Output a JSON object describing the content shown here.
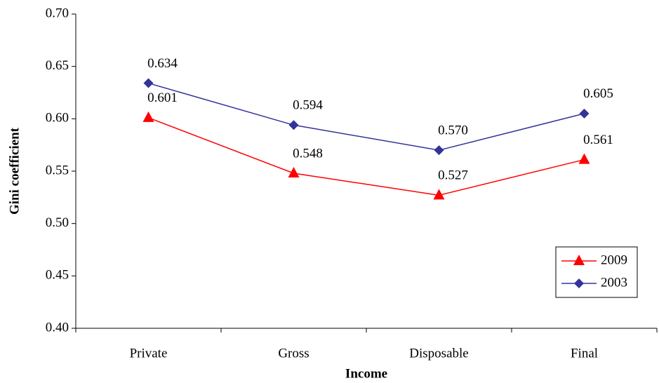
{
  "chart_data": {
    "type": "line",
    "x_label": "Income",
    "y_label": "Gini coefficient",
    "categories": [
      "Private",
      "Gross",
      "Disposable",
      "Final"
    ],
    "series": [
      {
        "name": "2009",
        "color": "#ff0000",
        "marker": "triangle",
        "values": [
          0.601,
          0.548,
          0.527,
          0.561
        ],
        "value_labels": [
          "0.601",
          "0.548",
          "0.527",
          "0.561"
        ]
      },
      {
        "name": "2003",
        "color": "#333399",
        "marker": "diamond",
        "values": [
          0.634,
          0.594,
          0.57,
          0.605
        ],
        "value_labels": [
          "0.634",
          "0.594",
          "0.570",
          "0.605"
        ]
      }
    ],
    "ylim": [
      0.4,
      0.7
    ],
    "yticks": [
      {
        "value": 0.4,
        "label": "0.40"
      },
      0.45,
      {
        "value": 0.5,
        "label": "0.50"
      },
      0.55,
      {
        "value": 0.6,
        "label": "0.60"
      },
      0.65,
      {
        "value": 0.7,
        "label": "0.70"
      }
    ],
    "legend": "lower right"
  }
}
